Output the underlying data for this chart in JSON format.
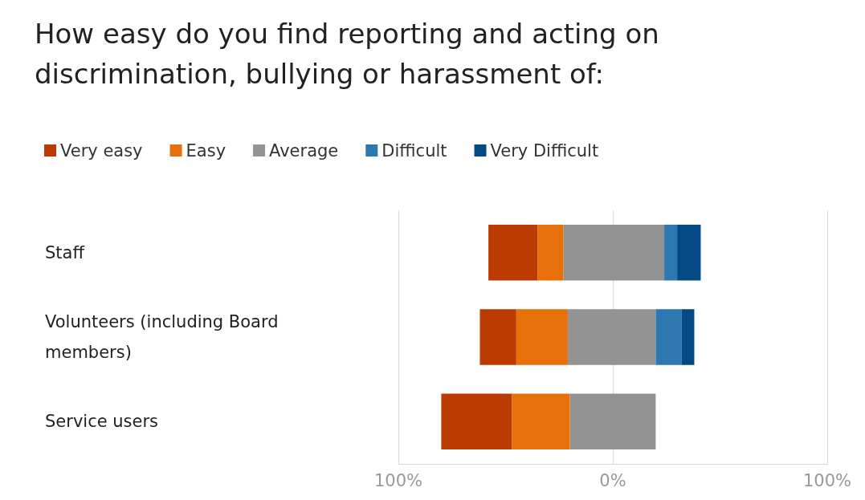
{
  "chart_data": {
    "type": "bar",
    "title": "How easy do you find reporting and acting on discrimination, bullying or harassment of:",
    "orientation": "horizontal",
    "categories": [
      "Staff",
      "Volunteers (including Board members)",
      "Service users"
    ],
    "series": [
      {
        "name": "Very easy",
        "color": "#bb3b03",
        "base": [
          -58,
          -62,
          -80
        ],
        "values": [
          23,
          17,
          33
        ]
      },
      {
        "name": "Easy",
        "color": "#e8700a",
        "base": [
          -35,
          -45,
          -47
        ],
        "values": [
          12,
          24,
          27
        ]
      },
      {
        "name": "Average",
        "color": "#939393",
        "base": [
          -23,
          -21,
          -20
        ],
        "values": [
          47,
          41,
          40
        ]
      },
      {
        "name": "Difficult",
        "color": "#2d78b0",
        "base": [
          24,
          20,
          null
        ],
        "values": [
          6,
          12,
          null
        ]
      },
      {
        "name": "Very Difficult",
        "color": "#034a85",
        "base": [
          30,
          32,
          null
        ],
        "values": [
          11,
          6,
          null
        ]
      }
    ],
    "xlim": [
      -100,
      100
    ],
    "xticks": [
      {
        "value": -100,
        "label": "100%"
      },
      {
        "value": 0,
        "label": "0%"
      },
      {
        "value": 100,
        "label": "100%"
      }
    ],
    "grid": "x",
    "legend": "top left"
  }
}
